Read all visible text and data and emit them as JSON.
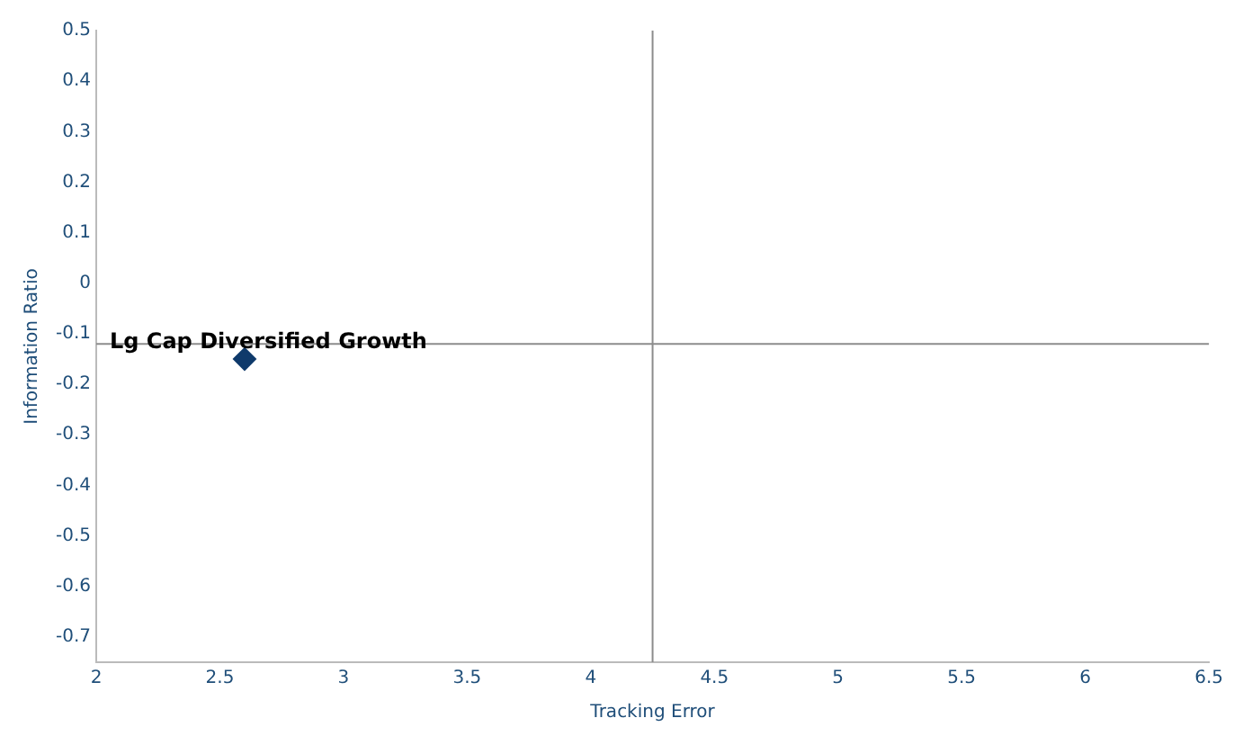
{
  "chart_data": {
    "type": "scatter",
    "xlabel": "Tracking Error",
    "ylabel": "Information Ratio",
    "x": [
      2.6
    ],
    "values": [
      -0.15
    ],
    "color": "#0f3a6b",
    "marker": "diamond",
    "xlim": [
      2,
      6.5
    ],
    "xticks": [
      2,
      2.5,
      3,
      3.5,
      4,
      4.5,
      5,
      5.5,
      6,
      6.5
    ],
    "ylim": [
      -0.75,
      0.5
    ],
    "yticks": [
      -0.7,
      -0.6,
      -0.5,
      -0.4,
      -0.3,
      -0.2,
      -0.1,
      0,
      0.1,
      0.2,
      0.3,
      0.4,
      0.5
    ],
    "grid": false,
    "legend": false,
    "ref_lines": [
      {
        "axis": "x",
        "value": 4.25,
        "color": "#8c8c8c"
      },
      {
        "axis": "y",
        "value": -0.12,
        "color": "#8c8c8c"
      }
    ],
    "annotations": [
      {
        "text": "Lg Cap Diversified Growth",
        "x": 2.6,
        "y": -0.15
      }
    ]
  }
}
